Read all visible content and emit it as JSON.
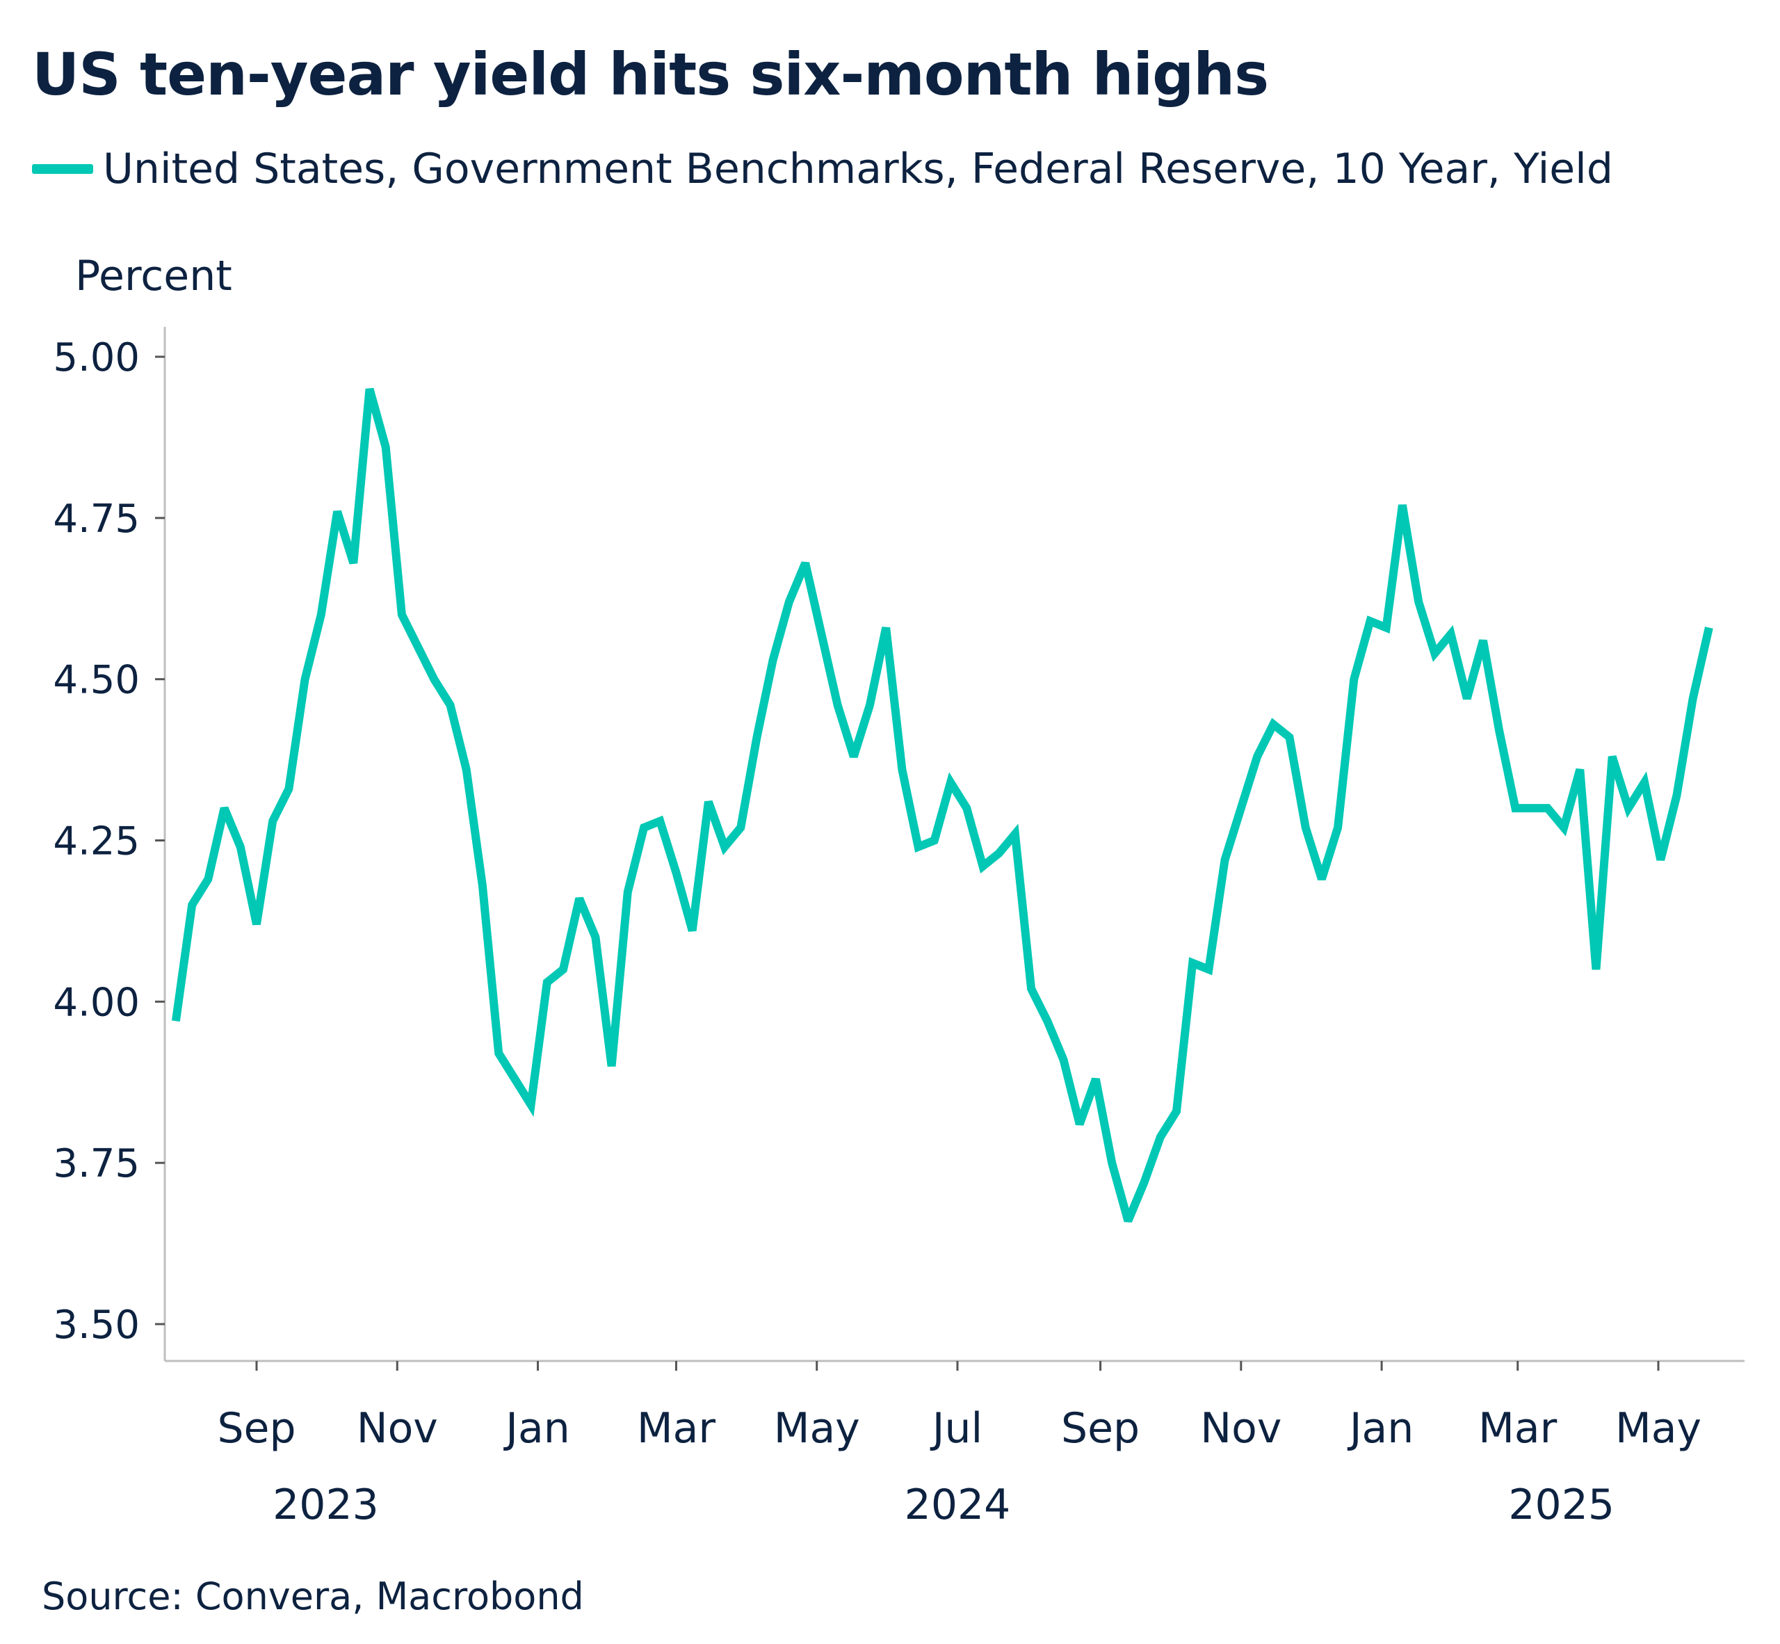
{
  "title": "US ten-year yield hits six-month highs",
  "source": "Source: Convera, Macrobond",
  "chart_data": {
    "type": "line",
    "title": "US ten-year yield hits six-month highs",
    "ylabel": "Percent",
    "xlabel": "",
    "ylim": [
      3.45,
      5.05
    ],
    "yticks": [
      "5.00",
      "4.75",
      "4.50",
      "4.25",
      "4.00",
      "3.75",
      "3.50"
    ],
    "xlim": [
      "2023-07-20",
      "2025-06-10"
    ],
    "xticks": [
      {
        "date": "2023-09-01",
        "label": "Sep"
      },
      {
        "date": "2023-11-01",
        "label": "Nov"
      },
      {
        "date": "2024-01-01",
        "label": "Jan"
      },
      {
        "date": "2024-03-01",
        "label": "Mar"
      },
      {
        "date": "2024-05-01",
        "label": "May"
      },
      {
        "date": "2024-07-01",
        "label": "Jul"
      },
      {
        "date": "2024-09-01",
        "label": "Sep"
      },
      {
        "date": "2024-11-01",
        "label": "Nov"
      },
      {
        "date": "2025-01-01",
        "label": "Jan"
      },
      {
        "date": "2025-03-01",
        "label": "Mar"
      },
      {
        "date": "2025-05-01",
        "label": "May"
      }
    ],
    "year_labels": [
      {
        "date": "2023-10-01",
        "label": "2023"
      },
      {
        "date": "2024-07-01",
        "label": "2024"
      },
      {
        "date": "2025-03-20",
        "label": "2025"
      }
    ],
    "grid": false,
    "legend_position": "top-left",
    "series": [
      {
        "name": "United States, Government Benchmarks, Federal Reserve, 10 Year, Yield",
        "color": "#00c8b4",
        "x": [
          "2023-07-28",
          "2023-08-04",
          "2023-08-11",
          "2023-08-18",
          "2023-08-25",
          "2023-09-01",
          "2023-09-08",
          "2023-09-15",
          "2023-09-22",
          "2023-09-29",
          "2023-10-06",
          "2023-10-13",
          "2023-10-20",
          "2023-10-27",
          "2023-11-03",
          "2023-11-10",
          "2023-11-17",
          "2023-11-24",
          "2023-12-01",
          "2023-12-08",
          "2023-12-15",
          "2023-12-22",
          "2023-12-29",
          "2024-01-05",
          "2024-01-12",
          "2024-01-19",
          "2024-01-26",
          "2024-02-02",
          "2024-02-09",
          "2024-02-16",
          "2024-02-23",
          "2024-03-01",
          "2024-03-08",
          "2024-03-15",
          "2024-03-22",
          "2024-03-29",
          "2024-04-05",
          "2024-04-12",
          "2024-04-19",
          "2024-04-26",
          "2024-05-03",
          "2024-05-10",
          "2024-05-17",
          "2024-05-24",
          "2024-05-31",
          "2024-06-07",
          "2024-06-14",
          "2024-06-21",
          "2024-06-28",
          "2024-07-05",
          "2024-07-12",
          "2024-07-19",
          "2024-07-26",
          "2024-08-02",
          "2024-08-09",
          "2024-08-16",
          "2024-08-23",
          "2024-08-30",
          "2024-09-06",
          "2024-09-13",
          "2024-09-20",
          "2024-09-27",
          "2024-10-04",
          "2024-10-11",
          "2024-10-18",
          "2024-10-25",
          "2024-11-01",
          "2024-11-08",
          "2024-11-15",
          "2024-11-22",
          "2024-11-29",
          "2024-12-06",
          "2024-12-13",
          "2024-12-20",
          "2024-12-27",
          "2025-01-03",
          "2025-01-10",
          "2025-01-17",
          "2025-01-24",
          "2025-01-31",
          "2025-02-07",
          "2025-02-14",
          "2025-02-21",
          "2025-02-28",
          "2025-03-07",
          "2025-03-14",
          "2025-03-21",
          "2025-03-28",
          "2025-04-04",
          "2025-04-11",
          "2025-04-18",
          "2025-04-25",
          "2025-05-02",
          "2025-05-09",
          "2025-05-16",
          "2025-05-23"
        ],
        "values": [
          3.97,
          4.15,
          4.19,
          4.3,
          4.24,
          4.12,
          4.28,
          4.33,
          4.5,
          4.6,
          4.76,
          4.68,
          4.95,
          4.86,
          4.6,
          4.55,
          4.5,
          4.46,
          4.36,
          4.18,
          3.92,
          3.88,
          3.84,
          4.03,
          4.05,
          4.16,
          4.1,
          3.9,
          4.17,
          4.27,
          4.28,
          4.2,
          4.11,
          4.31,
          4.24,
          4.27,
          4.41,
          4.53,
          4.62,
          4.68,
          4.57,
          4.46,
          4.38,
          4.46,
          4.58,
          4.36,
          4.24,
          4.25,
          4.34,
          4.3,
          4.21,
          4.23,
          4.26,
          4.02,
          3.97,
          3.91,
          3.81,
          3.88,
          3.75,
          3.66,
          3.72,
          3.79,
          3.83,
          4.06,
          4.05,
          4.22,
          4.3,
          4.38,
          4.43,
          4.41,
          4.27,
          4.19,
          4.27,
          4.5,
          4.59,
          4.58,
          4.77,
          4.62,
          4.54,
          4.57,
          4.47,
          4.56,
          4.42,
          4.3,
          4.3,
          4.3,
          4.27,
          4.36,
          4.05,
          4.38,
          4.3,
          4.34,
          4.22,
          4.32,
          4.47,
          4.58
        ]
      }
    ]
  }
}
